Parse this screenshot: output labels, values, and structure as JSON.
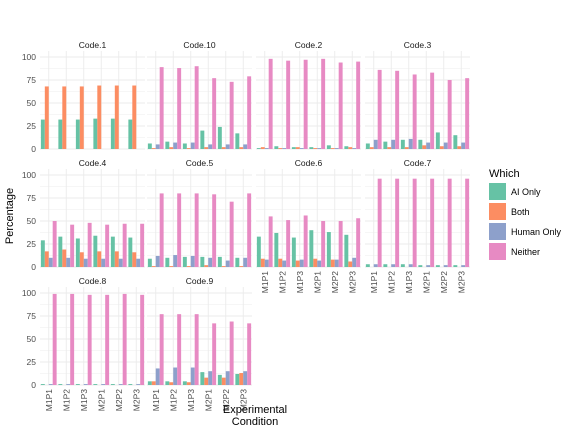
{
  "chart_data": {
    "type": "bar",
    "facet_layout": "wrap 4 columns",
    "categories": [
      "M1P1",
      "M1P2",
      "M1P3",
      "M2P1",
      "M2P2",
      "M2P3"
    ],
    "xlabel": "Experimental\nCondition",
    "ylabel": "Percentage",
    "ylim": [
      0,
      100
    ],
    "yticks": [
      0,
      25,
      50,
      75,
      100
    ],
    "grid": true,
    "legend": {
      "title": "Which",
      "placement": "right",
      "entries": [
        "AI Only",
        "Both",
        "Human Only",
        "Neither"
      ]
    },
    "series_colors": {
      "AI Only": "#66c2a5",
      "Both": "#fc8d62",
      "Human Only": "#8da0cb",
      "Neither": "#e78ac3"
    },
    "panels": [
      {
        "title": "Code.1",
        "series": [
          {
            "name": "AI Only",
            "values": [
              32,
              32,
              32,
              33,
              33,
              32
            ]
          },
          {
            "name": "Both",
            "values": [
              68,
              68,
              68,
              69,
              69,
              69
            ]
          },
          {
            "name": "Human Only",
            "values": [
              0,
              0,
              0,
              0,
              0,
              0
            ]
          },
          {
            "name": "Neither",
            "values": [
              0,
              0,
              0,
              0,
              0,
              0
            ]
          }
        ]
      },
      {
        "title": "Code.10",
        "series": [
          {
            "name": "AI Only",
            "values": [
              6,
              8,
              6,
              20,
              24,
              17
            ]
          },
          {
            "name": "Both",
            "values": [
              1,
              2,
              1,
              2,
              2,
              2
            ]
          },
          {
            "name": "Human Only",
            "values": [
              5,
              7,
              7,
              5,
              5,
              5
            ]
          },
          {
            "name": "Neither",
            "values": [
              89,
              88,
              90,
              77,
              73,
              79
            ]
          }
        ]
      },
      {
        "title": "Code.2",
        "series": [
          {
            "name": "AI Only",
            "values": [
              1,
              3,
              2,
              2,
              4,
              3
            ]
          },
          {
            "name": "Both",
            "values": [
              2,
              1,
              2,
              1,
              1,
              2
            ]
          },
          {
            "name": "Human Only",
            "values": [
              1,
              1,
              1,
              1,
              1,
              1
            ]
          },
          {
            "name": "Neither",
            "values": [
              98,
              96,
              97,
              98,
              94,
              95
            ]
          }
        ]
      },
      {
        "title": "Code.3",
        "series": [
          {
            "name": "AI Only",
            "values": [
              6,
              8,
              10,
              10,
              18,
              15
            ]
          },
          {
            "name": "Both",
            "values": [
              2,
              2,
              2,
              4,
              3,
              3
            ]
          },
          {
            "name": "Human Only",
            "values": [
              10,
              10,
              11,
              7,
              7,
              7
            ]
          },
          {
            "name": "Neither",
            "values": [
              86,
              85,
              81,
              83,
              75,
              77
            ]
          }
        ]
      },
      {
        "title": "Code.4",
        "series": [
          {
            "name": "AI Only",
            "values": [
              29,
              33,
              31,
              34,
              33,
              32
            ]
          },
          {
            "name": "Both",
            "values": [
              17,
              19,
              16,
              17,
              17,
              16
            ]
          },
          {
            "name": "Human Only",
            "values": [
              10,
              10,
              9,
              9,
              9,
              9
            ]
          },
          {
            "name": "Neither",
            "values": [
              50,
              46,
              48,
              46,
              47,
              47
            ]
          }
        ]
      },
      {
        "title": "Code.5",
        "series": [
          {
            "name": "AI Only",
            "values": [
              9,
              10,
              11,
              11,
              11,
              10
            ]
          },
          {
            "name": "Both",
            "values": [
              1,
              1,
              1,
              2,
              1,
              1
            ]
          },
          {
            "name": "Human Only",
            "values": [
              12,
              13,
              12,
              10,
              7,
              10
            ]
          },
          {
            "name": "Neither",
            "values": [
              80,
              80,
              80,
              79,
              71,
              80
            ]
          }
        ]
      },
      {
        "title": "Code.6",
        "series": [
          {
            "name": "AI Only",
            "values": [
              33,
              37,
              32,
              40,
              38,
              35
            ]
          },
          {
            "name": "Both",
            "values": [
              9,
              9,
              7,
              9,
              8,
              6
            ]
          },
          {
            "name": "Human Only",
            "values": [
              8,
              7,
              8,
              7,
              8,
              10
            ]
          },
          {
            "name": "Neither",
            "values": [
              55,
              51,
              56,
              50,
              50,
              53
            ]
          }
        ]
      },
      {
        "title": "Code.7",
        "series": [
          {
            "name": "AI Only",
            "values": [
              3,
              3,
              3,
              2,
              2,
              2
            ]
          },
          {
            "name": "Both",
            "values": [
              0,
              0,
              0,
              0,
              0,
              0
            ]
          },
          {
            "name": "Human Only",
            "values": [
              3,
              3,
              3,
              2,
              2,
              2
            ]
          },
          {
            "name": "Neither",
            "values": [
              96,
              96,
              96,
              96,
              96,
              96
            ]
          }
        ]
      },
      {
        "title": "Code.8",
        "series": [
          {
            "name": "AI Only",
            "values": [
              1,
              1,
              1,
              1,
              1,
              1
            ]
          },
          {
            "name": "Both",
            "values": [
              0,
              0,
              0,
              0,
              0,
              0
            ]
          },
          {
            "name": "Human Only",
            "values": [
              1,
              1,
              1,
              1,
              1,
              1
            ]
          },
          {
            "name": "Neither",
            "values": [
              99,
              99,
              98,
              98,
              99,
              98
            ]
          }
        ]
      },
      {
        "title": "Code.9",
        "series": [
          {
            "name": "AI Only",
            "values": [
              4,
              4,
              4,
              14,
              11,
              12
            ]
          },
          {
            "name": "Both",
            "values": [
              4,
              3,
              3,
              8,
              8,
              13
            ]
          },
          {
            "name": "Human Only",
            "values": [
              18,
              19,
              19,
              15,
              15,
              15
            ]
          },
          {
            "name": "Neither",
            "values": [
              77,
              77,
              77,
              67,
              69,
              67
            ]
          }
        ]
      }
    ]
  }
}
